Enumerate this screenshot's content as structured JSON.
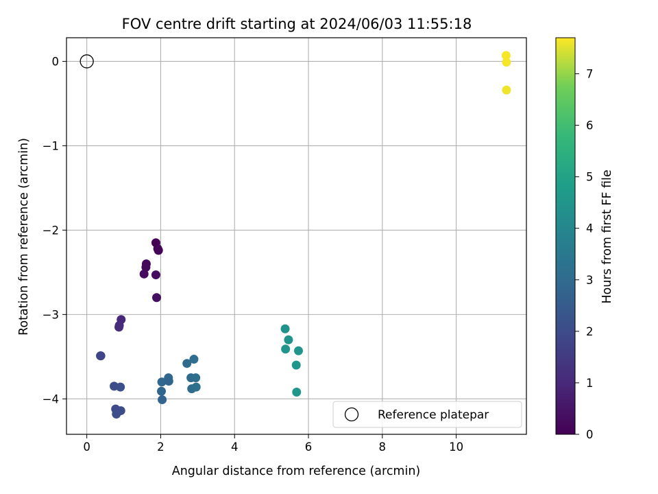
{
  "chart_data": {
    "type": "scatter",
    "title": "FOV centre drift starting at 2024/06/03 11:55:18",
    "xlabel": "Angular distance from reference (arcmin)",
    "ylabel": "Rotation from reference (arcmin)",
    "xlim": [
      -0.55,
      11.9
    ],
    "ylim": [
      -4.42,
      0.28
    ],
    "xticks": [
      0,
      2,
      4,
      6,
      8,
      10
    ],
    "yticks": [
      0,
      -1,
      -2,
      -3,
      -4
    ],
    "xtick_labels": [
      "0",
      "2",
      "4",
      "6",
      "8",
      "10"
    ],
    "ytick_labels": [
      "0",
      "−1",
      "−2",
      "−3",
      "−4"
    ],
    "grid": true,
    "colorscale": "viridis",
    "colorbar": {
      "label": "Hours from first FF file",
      "range": [
        0,
        7.7
      ],
      "ticks": [
        0,
        1,
        2,
        3,
        4,
        5,
        6,
        7
      ],
      "tick_labels": [
        "0",
        "1",
        "2",
        "3",
        "4",
        "5",
        "6",
        "7"
      ]
    },
    "legend": {
      "position": "lower-right",
      "entries": [
        {
          "label": "Reference platepar",
          "marker": "hollow-circle",
          "color": "#000000"
        }
      ]
    },
    "reference_point": {
      "x": 0,
      "y": 0
    },
    "points": [
      {
        "x": 1.87,
        "y": -2.15,
        "h": 0.0
      },
      {
        "x": 1.92,
        "y": -2.22,
        "h": 0.05
      },
      {
        "x": 1.94,
        "y": -2.24,
        "h": 0.1
      },
      {
        "x": 1.61,
        "y": -2.4,
        "h": 0.15
      },
      {
        "x": 1.6,
        "y": -2.44,
        "h": 0.2
      },
      {
        "x": 1.55,
        "y": -2.52,
        "h": 0.25
      },
      {
        "x": 1.87,
        "y": -2.53,
        "h": 0.3
      },
      {
        "x": 1.89,
        "y": -2.8,
        "h": 0.35
      },
      {
        "x": 0.93,
        "y": -3.06,
        "h": 1.0
      },
      {
        "x": 0.88,
        "y": -3.13,
        "h": 1.05
      },
      {
        "x": 0.87,
        "y": -3.15,
        "h": 1.1
      },
      {
        "x": 0.38,
        "y": -3.49,
        "h": 1.75
      },
      {
        "x": 0.37,
        "y": -3.49,
        "h": 1.8
      },
      {
        "x": 0.74,
        "y": -3.85,
        "h": 2.05
      },
      {
        "x": 0.91,
        "y": -3.86,
        "h": 2.1
      },
      {
        "x": 0.78,
        "y": -4.12,
        "h": 2.0
      },
      {
        "x": 0.92,
        "y": -4.14,
        "h": 2.05
      },
      {
        "x": 0.8,
        "y": -4.18,
        "h": 2.1
      },
      {
        "x": 2.03,
        "y": -3.8,
        "h": 2.85
      },
      {
        "x": 2.02,
        "y": -3.91,
        "h": 2.8
      },
      {
        "x": 2.04,
        "y": -4.01,
        "h": 2.75
      },
      {
        "x": 2.21,
        "y": -3.75,
        "h": 2.85
      },
      {
        "x": 2.22,
        "y": -3.79,
        "h": 2.8
      },
      {
        "x": 2.71,
        "y": -3.58,
        "h": 3.0
      },
      {
        "x": 2.9,
        "y": -3.53,
        "h": 3.1
      },
      {
        "x": 2.82,
        "y": -3.75,
        "h": 3.05
      },
      {
        "x": 2.95,
        "y": -3.75,
        "h": 3.15
      },
      {
        "x": 2.84,
        "y": -3.88,
        "h": 3.05
      },
      {
        "x": 2.96,
        "y": -3.86,
        "h": 3.15
      },
      {
        "x": 5.37,
        "y": -3.17,
        "h": 4.45
      },
      {
        "x": 5.46,
        "y": -3.3,
        "h": 4.45
      },
      {
        "x": 5.38,
        "y": -3.41,
        "h": 4.5
      },
      {
        "x": 5.73,
        "y": -3.43,
        "h": 4.5
      },
      {
        "x": 5.67,
        "y": -3.6,
        "h": 4.55
      },
      {
        "x": 5.68,
        "y": -3.92,
        "h": 4.55
      },
      {
        "x": 11.35,
        "y": 0.07,
        "h": 7.65
      },
      {
        "x": 11.36,
        "y": -0.01,
        "h": 7.65
      },
      {
        "x": 11.36,
        "y": -0.34,
        "h": 7.6
      }
    ]
  }
}
